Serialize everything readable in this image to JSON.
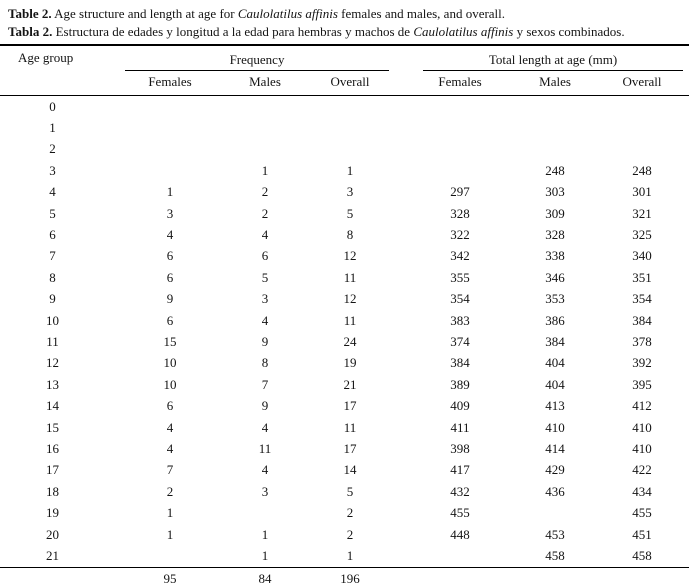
{
  "caption_en": {
    "label": "Table 2.",
    "pre": " Age structure and length at age for ",
    "species": "Caulolatilus affinis",
    "post": " females and males, and overall."
  },
  "caption_es": {
    "label": "Tabla 2.",
    "pre": " Estructura de edades y longitud a la edad para hembras y machos de ",
    "species": "Caulolatilus affinis",
    "post": " y sexos combinados."
  },
  "table": {
    "age_header": "Age group",
    "group_frequency": "Frequency",
    "group_length": "Total length at age (mm)",
    "subheaders": [
      "Females",
      "Males",
      "Overall",
      "Females",
      "Males",
      "Overall"
    ],
    "column_keys": [
      "age",
      "freq-females",
      "freq-males",
      "freq-overall",
      "len-females",
      "len-males",
      "len-overall"
    ],
    "rows": [
      [
        "0",
        "",
        "",
        "",
        "",
        "",
        ""
      ],
      [
        "1",
        "",
        "",
        "",
        "",
        "",
        ""
      ],
      [
        "2",
        "",
        "",
        "",
        "",
        "",
        ""
      ],
      [
        "3",
        "",
        "1",
        "1",
        "",
        "248",
        "248"
      ],
      [
        "4",
        "1",
        "2",
        "3",
        "297",
        "303",
        "301"
      ],
      [
        "5",
        "3",
        "2",
        "5",
        "328",
        "309",
        "321"
      ],
      [
        "6",
        "4",
        "4",
        "8",
        "322",
        "328",
        "325"
      ],
      [
        "7",
        "6",
        "6",
        "12",
        "342",
        "338",
        "340"
      ],
      [
        "8",
        "6",
        "5",
        "11",
        "355",
        "346",
        "351"
      ],
      [
        "9",
        "9",
        "3",
        "12",
        "354",
        "353",
        "354"
      ],
      [
        "10",
        "6",
        "4",
        "11",
        "383",
        "386",
        "384"
      ],
      [
        "11",
        "15",
        "9",
        "24",
        "374",
        "384",
        "378"
      ],
      [
        "12",
        "10",
        "8",
        "19",
        "384",
        "404",
        "392"
      ],
      [
        "13",
        "10",
        "7",
        "21",
        "389",
        "404",
        "395"
      ],
      [
        "14",
        "6",
        "9",
        "17",
        "409",
        "413",
        "412"
      ],
      [
        "15",
        "4",
        "4",
        "11",
        "411",
        "410",
        "410"
      ],
      [
        "16",
        "4",
        "11",
        "17",
        "398",
        "414",
        "410"
      ],
      [
        "17",
        "7",
        "4",
        "14",
        "417",
        "429",
        "422"
      ],
      [
        "18",
        "2",
        "3",
        "5",
        "432",
        "436",
        "434"
      ],
      [
        "19",
        "1",
        "",
        "2",
        "455",
        "",
        "455"
      ],
      [
        "20",
        "1",
        "1",
        "2",
        "448",
        "453",
        "451"
      ],
      [
        "21",
        "",
        "1",
        "1",
        "",
        "458",
        "458"
      ]
    ],
    "totals": [
      "",
      "95",
      "84",
      "196",
      "",
      "",
      ""
    ]
  }
}
